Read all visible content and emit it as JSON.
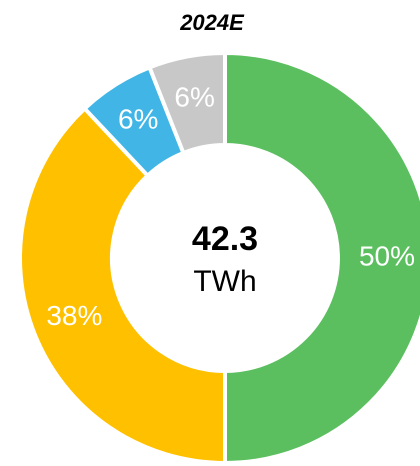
{
  "chart_data": {
    "type": "donut",
    "title": "2024E",
    "center_value": 42.3,
    "center_unit": "TWh",
    "categories": [
      null,
      null,
      null,
      null
    ],
    "values": [
      50,
      38,
      6,
      6
    ],
    "value_labels": [
      "50%",
      "38%",
      "6%",
      "6%"
    ],
    "colors": [
      "#5bbf5f",
      "#ffc000",
      "#41b6e6",
      "#c8c8c8"
    ]
  }
}
